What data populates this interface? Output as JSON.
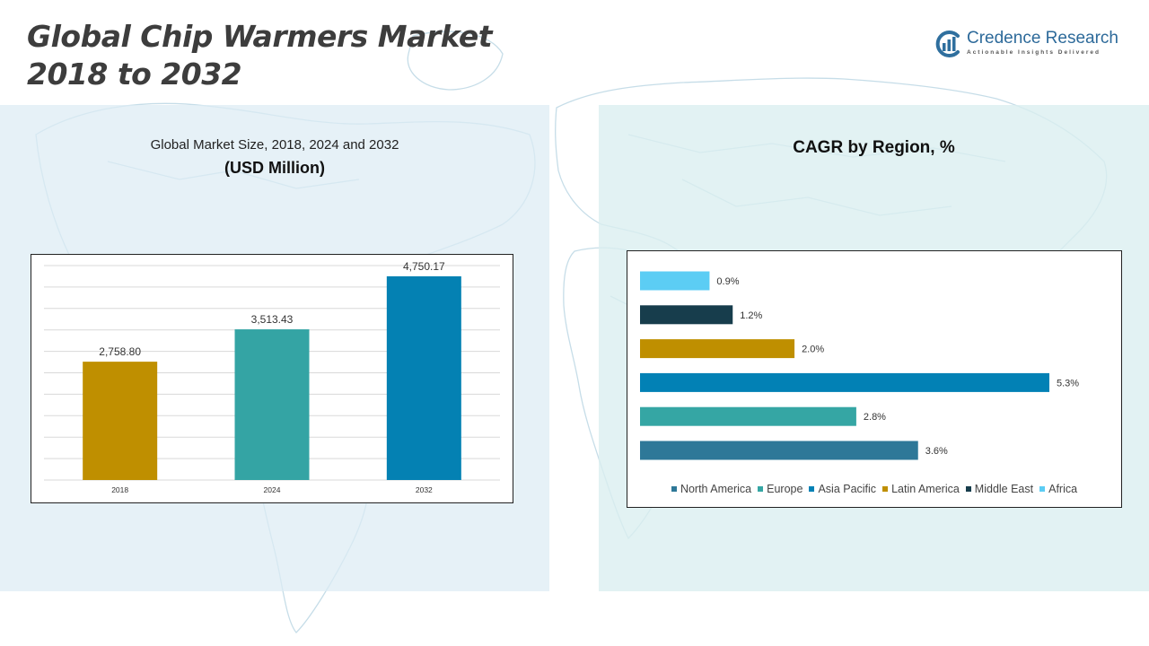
{
  "title_line1": "Global Chip Warmers Market",
  "title_line2": "2018 to 2032",
  "brand": {
    "name": "Credence Research",
    "tagline": "Actionable Insights Delivered"
  },
  "left_panel": {
    "heading": "Global Market Size, 2018, 2024 and 2032",
    "subheading": "(USD Million)"
  },
  "right_panel": {
    "heading": "CAGR by Region, %"
  },
  "chart_data": [
    {
      "type": "bar",
      "title": "Global Market Size, 2018, 2024 and 2032",
      "ylabel": "(USD Million)",
      "categories": [
        "2018",
        "2024",
        "2032"
      ],
      "values": [
        2758.8,
        3513.43,
        4750.17
      ],
      "value_labels": [
        "2,758.80",
        "3,513.43",
        "4,750.17"
      ],
      "colors": [
        "#bf8f00",
        "#34a4a4",
        "#0481b3"
      ],
      "ylim": [
        0,
        5000
      ],
      "grid": true
    },
    {
      "type": "bar",
      "orientation": "horizontal",
      "title": "CAGR by Region, %",
      "categories": [
        "North America",
        "Europe",
        "Asia Pacific",
        "Latin America",
        "Middle East",
        "Africa"
      ],
      "values": [
        3.6,
        2.8,
        5.3,
        2.0,
        1.2,
        0.9
      ],
      "value_labels": [
        "3.6%",
        "2.8%",
        "5.3%",
        "2.0%",
        "1.2%",
        "0.9%"
      ],
      "colors": [
        "#2e7898",
        "#35a6a4",
        "#0281b5",
        "#bf8f00",
        "#173d4c",
        "#5ccdf4"
      ],
      "xlim": [
        0,
        5.3
      ],
      "legend": "bottom"
    }
  ]
}
